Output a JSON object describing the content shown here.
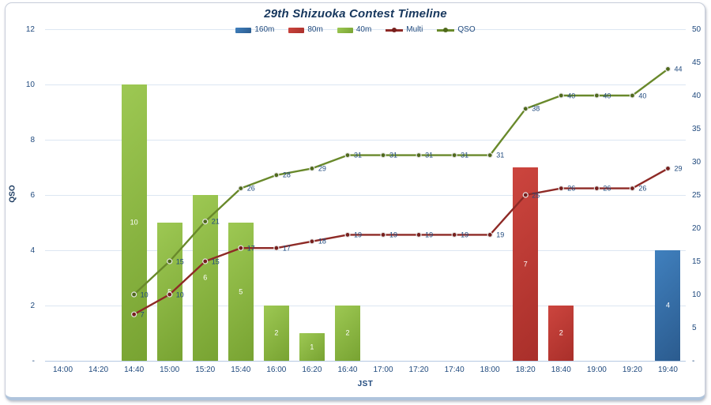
{
  "chart": {
    "title": "29th Shizuoka Contest Timeline"
  },
  "chart_data": {
    "type": "combo-bar-line",
    "title": "29th Shizuoka Contest Timeline",
    "categories": [
      "14:00",
      "14:20",
      "14:40",
      "15:00",
      "15:20",
      "15:40",
      "16:00",
      "16:20",
      "16:40",
      "17:00",
      "17:20",
      "17:40",
      "18:00",
      "18:20",
      "18:40",
      "19:00",
      "19:20",
      "19:40"
    ],
    "x_axis": {
      "title": "JST"
    },
    "left_axis": {
      "title": "QSO",
      "min": 0,
      "max": 12,
      "step": 2,
      "zero_label": "-"
    },
    "right_axis": {
      "min": 0,
      "max": 50,
      "step": 5,
      "zero_label": "-"
    },
    "grid": "horizontal",
    "legend_position": "top",
    "bar_series": [
      {
        "name": "160m",
        "axis": "left",
        "color": "#4080BE",
        "color2": "#2B5B8E",
        "values": [
          null,
          null,
          null,
          null,
          null,
          null,
          null,
          null,
          null,
          null,
          null,
          null,
          null,
          null,
          null,
          null,
          null,
          4
        ]
      },
      {
        "name": "80m",
        "axis": "left",
        "color": "#CC453E",
        "color2": "#A92F2A",
        "values": [
          null,
          null,
          null,
          null,
          null,
          null,
          null,
          null,
          null,
          null,
          null,
          null,
          null,
          7,
          2,
          null,
          null,
          null
        ]
      },
      {
        "name": "40m",
        "axis": "left",
        "color": "#9DC853",
        "color2": "#78A332",
        "values": [
          null,
          null,
          10,
          5,
          6,
          5,
          2,
          1,
          2,
          null,
          null,
          null,
          null,
          null,
          null,
          null,
          null,
          null
        ]
      }
    ],
    "line_series": [
      {
        "name": "Multi",
        "axis": "right",
        "color": "#8E2A26",
        "marker_color": "#761F1D",
        "values": [
          null,
          null,
          7,
          10,
          15,
          17,
          17,
          18,
          19,
          19,
          19,
          19,
          19,
          25,
          26,
          26,
          26,
          29
        ]
      },
      {
        "name": "QSO",
        "axis": "right",
        "color": "#69892B",
        "marker_color": "#4F691C",
        "values": [
          null,
          null,
          10,
          15,
          21,
          26,
          28,
          29,
          31,
          31,
          31,
          31,
          31,
          38,
          40,
          40,
          40,
          44
        ]
      }
    ]
  }
}
